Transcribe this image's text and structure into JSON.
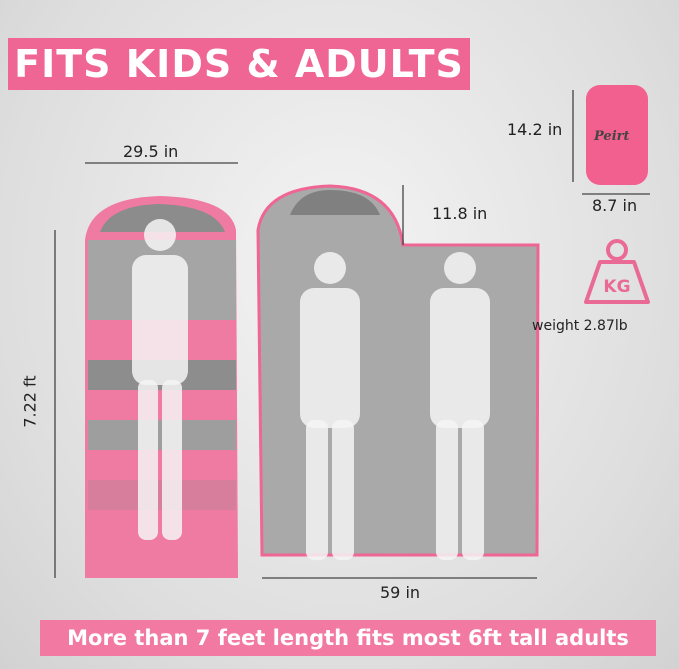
{
  "title": "FITS KIDS & ADULTS",
  "footer": "More than 7 feet length fits most 6ft tall adults",
  "dimensions": {
    "width_single": "29.5 in",
    "length": "7.22 ft",
    "hood": "11.8 in",
    "width_double": "59 in",
    "pouch_height": "14.2 in",
    "pouch_width": "8.7 in"
  },
  "weight": {
    "icon": "kettlebell-weight-icon",
    "icon_text": "KG",
    "label": "weight 2.87lb"
  },
  "brand": "Peirt",
  "colors": {
    "accent": "#ef6594",
    "bag_gray": "#a9a9a9",
    "bag_pink": "#ee7aa0"
  }
}
